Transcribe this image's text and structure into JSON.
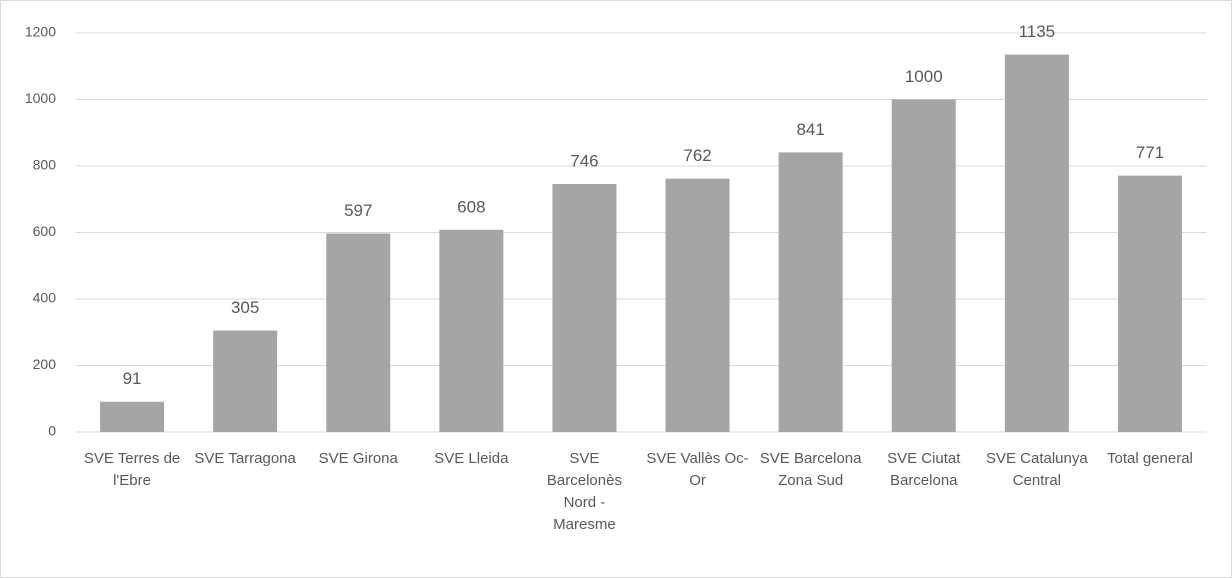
{
  "chart_data": {
    "type": "bar",
    "categories": [
      "SVE Terres de l'Ebre",
      "SVE Tarragona",
      "SVE Girona",
      "SVE Lleida",
      "SVE Barcelonès Nord - Maresme",
      "SVE Vallès Oc-Or",
      "SVE Barcelona Zona Sud",
      "SVE Ciutat Barcelona",
      "SVE Catalunya Central",
      "Total general"
    ],
    "values": [
      91,
      305,
      597,
      608,
      746,
      762,
      841,
      1000,
      1135,
      771
    ],
    "color": "#a5a5a5",
    "ylim": [
      0,
      1200
    ],
    "yticks": [
      0,
      200,
      400,
      600,
      800,
      1000,
      1200
    ],
    "grid": true
  }
}
